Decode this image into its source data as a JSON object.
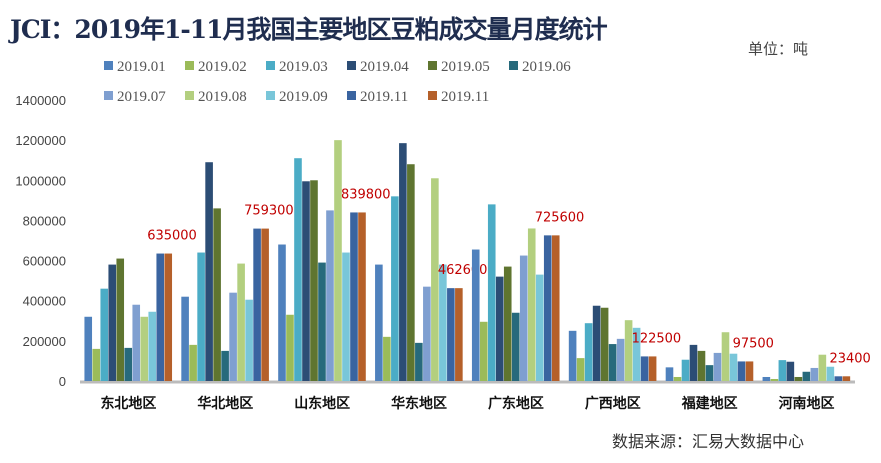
{
  "chart_data": {
    "type": "bar",
    "title": "JCI：2019年1-11月我国主要地区豆粕成交量月度统计",
    "unit": "单位：吨",
    "source": "数据来源：汇易大数据中心",
    "categories": [
      "东北地区",
      "华北地区",
      "山东地区",
      "华东地区",
      "广东地区",
      "广西地区",
      "福建地区",
      "河南地区"
    ],
    "ylim": [
      0,
      1400000
    ],
    "yticks": [
      0,
      200000,
      400000,
      600000,
      800000,
      1000000,
      1200000,
      1400000
    ],
    "legend_placement": "top",
    "series": [
      {
        "name": "2019.01",
        "color": "#4f81bd",
        "values": [
          320000,
          420000,
          680000,
          580000,
          655000,
          250000,
          68000,
          20000
        ]
      },
      {
        "name": "2019.02",
        "color": "#9bbb59",
        "values": [
          160000,
          180000,
          330000,
          220000,
          295000,
          114000,
          20000,
          10000
        ]
      },
      {
        "name": "2019.03",
        "color": "#4bacc6",
        "values": [
          460000,
          640000,
          1110000,
          920000,
          880000,
          288000,
          106000,
          104000
        ]
      },
      {
        "name": "2019.04",
        "color": "#2c4d75",
        "values": [
          580000,
          1090000,
          995000,
          1185000,
          520000,
          375000,
          180000,
          96000
        ]
      },
      {
        "name": "2019.05",
        "color": "#5f7530",
        "values": [
          610000,
          860000,
          1000000,
          1080000,
          570000,
          365000,
          150000,
          20000
        ]
      },
      {
        "name": "2019.06",
        "color": "#276a7c",
        "values": [
          165000,
          150000,
          590000,
          190000,
          340000,
          184000,
          79000,
          46000
        ]
      },
      {
        "name": "2019.07",
        "color": "#7f9fd0",
        "values": [
          380000,
          440000,
          850000,
          470000,
          625000,
          210000,
          140000,
          65000
        ]
      },
      {
        "name": "2019.08",
        "color": "#b3cf7f",
        "values": [
          320000,
          585000,
          1200000,
          1010000,
          760000,
          303000,
          243000,
          131000
        ]
      },
      {
        "name": "2019.09",
        "color": "#79c6d9",
        "values": [
          345000,
          405000,
          640000,
          580000,
          530000,
          265000,
          136000,
          71000
        ]
      },
      {
        "name": "2019.11",
        "color": "#3a64a0",
        "values": [
          635000,
          759300,
          839800,
          462600,
          725600,
          122500,
          97500,
          23400
        ]
      },
      {
        "name": "2019.11",
        "color": "#b5602a",
        "values": [
          635000,
          759300,
          839800,
          462600,
          725600,
          122500,
          97500,
          23400
        ]
      }
    ],
    "data_labels": [
      "635000",
      "759300",
      "839800",
      "462600",
      "725600",
      "122500",
      "97500",
      "23400"
    ],
    "label_color": "#c00000"
  }
}
